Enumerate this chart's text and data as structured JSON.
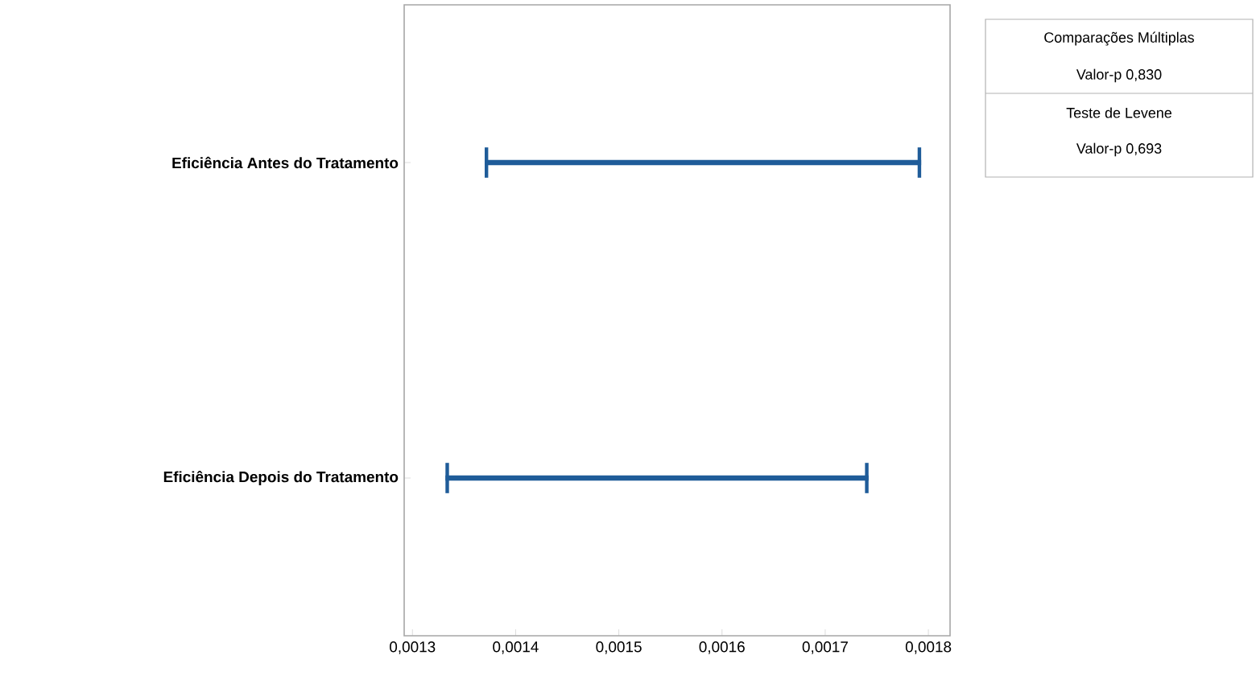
{
  "chart_data": {
    "type": "bar",
    "orientation": "horizontal",
    "categories": [
      "Eficiência Antes do Tratamento",
      "Eficiência Depois do Tratamento"
    ],
    "base": [
      0.00137,
      0.001332
    ],
    "values": [
      0.000423,
      0.00041
    ],
    "color": "#1f5c99",
    "xlim": [
      0.001292,
      0.001821
    ],
    "xticks": [
      {
        "value": 0.0013,
        "label": "0,0013"
      },
      {
        "value": 0.0014,
        "label": "0,0014"
      },
      {
        "value": 0.0015,
        "label": "0,0015"
      },
      {
        "value": 0.0016,
        "label": "0,0016"
      },
      {
        "value": 0.0017,
        "label": "0,0017"
      },
      {
        "value": 0.0018,
        "label": "0,0018"
      }
    ],
    "annotations": [
      "Comparações Múltiplas",
      "Valor-p   0,830",
      "Teste de Levene",
      "Valor-p   0,693"
    ]
  }
}
